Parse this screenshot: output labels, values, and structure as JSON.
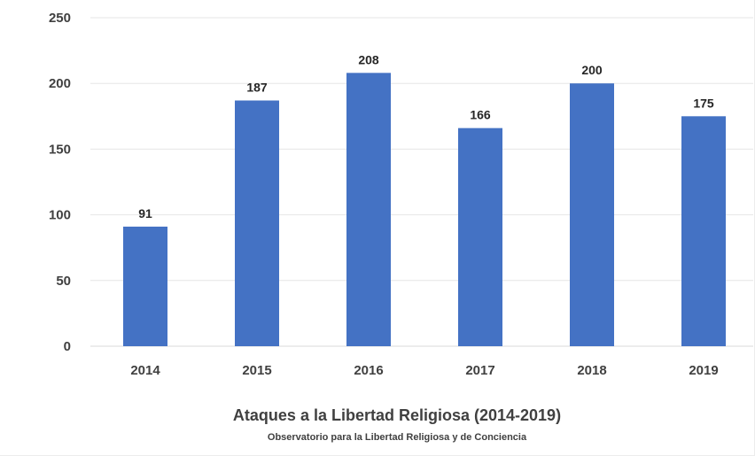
{
  "chart_data": {
    "type": "bar",
    "title": "Ataques a la Libertad Religiosa (2014-2019)",
    "subtitle": "Observatorio para la Libertad Religiosa y de Conciencia",
    "categories": [
      "2014",
      "2015",
      "2016",
      "2017",
      "2018",
      "2019"
    ],
    "values": [
      91,
      187,
      208,
      166,
      200,
      175
    ],
    "data_labels": [
      "91",
      "187",
      "208",
      "166",
      "200",
      "175"
    ],
    "xlabel": "",
    "ylabel": "",
    "ylim": [
      0,
      250
    ],
    "yticks": [
      0,
      50,
      100,
      150,
      200,
      250
    ],
    "ytick_labels": [
      "0",
      "50",
      "100",
      "150",
      "200",
      "250"
    ],
    "grid": true,
    "legend": "none",
    "bar_color": "#4472C4"
  }
}
